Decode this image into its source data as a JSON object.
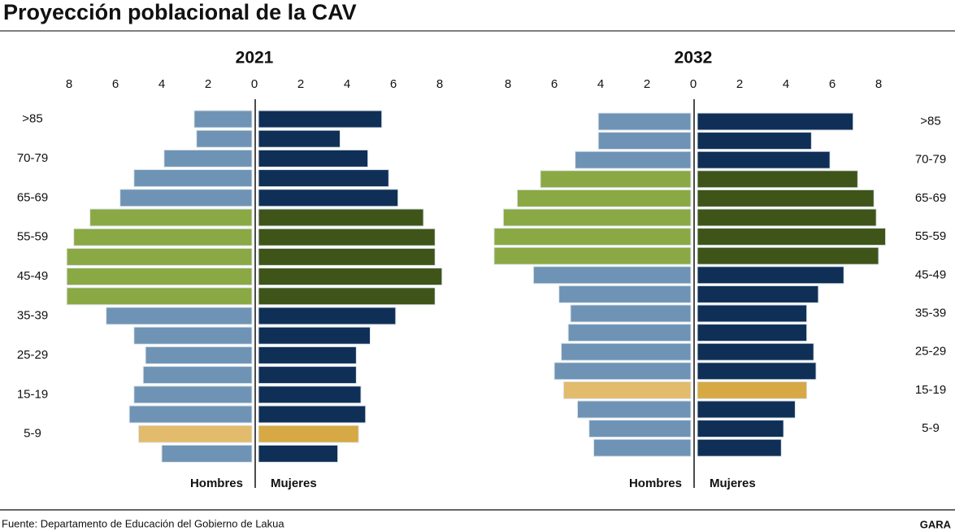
{
  "title": "Proyección poblacional de la CAV",
  "source": "Fuente: Departamento de Educación del Gobierno de Lakua",
  "brand": "GARA",
  "chart_data": [
    {
      "type": "pyramid",
      "title": "2021",
      "categories": [
        ">85",
        null,
        "70-79",
        null,
        "65-69",
        null,
        "55-59",
        null,
        "45-49",
        null,
        "35-39",
        null,
        "25-29",
        null,
        "15-19",
        null,
        "5-9",
        null
      ],
      "series": [
        {
          "name": "Hombres",
          "colors": [
            "#6e93b4",
            "#6e93b4",
            "#6e93b4",
            "#6e93b4",
            "#6e93b4",
            "#8aa843",
            "#8aa843",
            "#8aa843",
            "#8aa843",
            "#8aa843",
            "#6e93b4",
            "#6e93b4",
            "#6e93b4",
            "#6e93b4",
            "#6e93b4",
            "#6e93b4",
            "#e2bb6c",
            "#6e93b4"
          ],
          "values": [
            2.6,
            2.5,
            3.9,
            5.2,
            5.8,
            7.1,
            7.8,
            8.1,
            8.1,
            8.1,
            6.4,
            5.2,
            4.7,
            4.8,
            5.2,
            5.4,
            5.0,
            4.0
          ]
        },
        {
          "name": "Mujeres",
          "colors": [
            "#0f2f57",
            "#0f2f57",
            "#0f2f57",
            "#0f2f57",
            "#0f2f57",
            "#3f5419",
            "#3f5419",
            "#3f5419",
            "#3f5419",
            "#3f5419",
            "#0f2f57",
            "#0f2f57",
            "#0f2f57",
            "#0f2f57",
            "#0f2f57",
            "#0f2f57",
            "#d6a945",
            "#0f2f57"
          ],
          "values": [
            5.5,
            3.7,
            4.9,
            5.8,
            6.2,
            7.3,
            7.8,
            7.8,
            8.1,
            7.8,
            6.1,
            5.0,
            4.4,
            4.4,
            4.6,
            4.8,
            4.5,
            3.6
          ]
        }
      ],
      "xlim": [
        0,
        8
      ],
      "xticks": [
        0,
        2,
        4,
        6,
        8
      ],
      "category_side": "left"
    },
    {
      "type": "pyramid",
      "title": "2032",
      "categories": [
        ">85",
        null,
        "70-79",
        null,
        "65-69",
        null,
        "55-59",
        null,
        "45-49",
        null,
        "35-39",
        null,
        "25-29",
        null,
        "15-19",
        null,
        "5-9",
        null
      ],
      "series": [
        {
          "name": "Hombres",
          "colors": [
            "#6e93b4",
            "#6e93b4",
            "#6e93b4",
            "#8aa843",
            "#8aa843",
            "#8aa843",
            "#8aa843",
            "#8aa843",
            "#6e93b4",
            "#6e93b4",
            "#6e93b4",
            "#6e93b4",
            "#6e93b4",
            "#6e93b4",
            "#e2bb6c",
            "#6e93b4",
            "#6e93b4",
            "#6e93b4"
          ],
          "values": [
            4.1,
            4.1,
            5.1,
            6.6,
            7.6,
            8.2,
            8.6,
            8.6,
            6.9,
            5.8,
            5.3,
            5.4,
            5.7,
            6.0,
            5.6,
            5.0,
            4.5,
            4.3
          ]
        },
        {
          "name": "Mujeres",
          "colors": [
            "#0f2f57",
            "#0f2f57",
            "#0f2f57",
            "#3f5419",
            "#3f5419",
            "#3f5419",
            "#3f5419",
            "#3f5419",
            "#0f2f57",
            "#0f2f57",
            "#0f2f57",
            "#0f2f57",
            "#0f2f57",
            "#0f2f57",
            "#d6a945",
            "#0f2f57",
            "#0f2f57",
            "#0f2f57"
          ],
          "values": [
            6.9,
            5.1,
            5.9,
            7.1,
            7.8,
            7.9,
            8.3,
            8.0,
            6.5,
            5.4,
            4.9,
            4.9,
            5.2,
            5.3,
            4.9,
            4.4,
            3.9,
            3.8
          ]
        }
      ],
      "xlim": [
        0,
        8
      ],
      "xticks": [
        0,
        2,
        4,
        6,
        8
      ],
      "category_side": "right"
    }
  ]
}
